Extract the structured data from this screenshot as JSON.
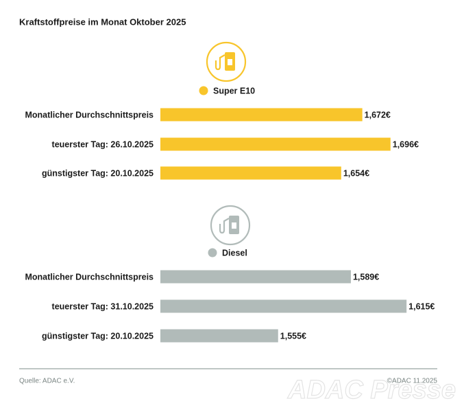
{
  "title": "Kraftstoffpreise im Monat Oktober 2025",
  "source": "Quelle: ADAC e.V.",
  "copyright": "©ADAC 11.2025",
  "watermark": "ADAC Presse",
  "chart_data": [
    {
      "type": "bar",
      "orientation": "horizontal",
      "categories": [
        "Monatlicher Durchschnittspreis",
        "teuerster Tag: 26.10.2025",
        "günstigster Tag: 20.10.2025"
      ],
      "series": [
        {
          "name": "Super E10",
          "color": "#f8c52b",
          "values": [
            1.672,
            1.696,
            1.654
          ],
          "value_labels": [
            "1,672€",
            "1,696€",
            "1,654€"
          ]
        }
      ],
      "xlim": [
        1.5,
        1.737
      ]
    },
    {
      "type": "bar",
      "orientation": "horizontal",
      "categories": [
        "Monatlicher Durchschnittspreis",
        "teuerster Tag: 31.10.2025",
        "günstigster Tag: 20.10.2025"
      ],
      "series": [
        {
          "name": "Diesel",
          "color": "#b1bbb9",
          "values": [
            1.589,
            1.615,
            1.555
          ],
          "value_labels": [
            "1,589€",
            "1,615€",
            "1,555€"
          ]
        }
      ],
      "xlim": [
        1.5,
        1.63
      ]
    }
  ]
}
